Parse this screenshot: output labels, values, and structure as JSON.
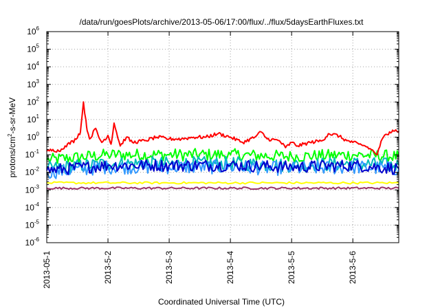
{
  "chart_data": {
    "type": "line",
    "title": "/data/run/goesPlots/archive/2013-05-06/17:00/flux/../flux/5daysEarthFluxes.txt",
    "xlabel": "Coordinated Universal Time (UTC)",
    "ylabel": {
      "pre": "protons/cm",
      "sup": "2",
      "post": "-s-sr-MeV"
    },
    "yscale": "log",
    "ylim": [
      1e-06,
      1000000.0
    ],
    "xlim": [
      0,
      5.75
    ],
    "grid": true,
    "y_ticks": [
      {
        "value": 1e-06,
        "base": "10",
        "exp": "-6"
      },
      {
        "value": 1e-05,
        "base": "10",
        "exp": "-5"
      },
      {
        "value": 0.0001,
        "base": "10",
        "exp": "-4"
      },
      {
        "value": 0.001,
        "base": "10",
        "exp": "-3"
      },
      {
        "value": 0.01,
        "base": "10",
        "exp": "-2"
      },
      {
        "value": 0.1,
        "base": "10",
        "exp": "-1"
      },
      {
        "value": 1,
        "base": "10",
        "exp": "0"
      },
      {
        "value": 10.0,
        "base": "10",
        "exp": "1"
      },
      {
        "value": 100.0,
        "base": "10",
        "exp": "2"
      },
      {
        "value": 1000.0,
        "base": "10",
        "exp": "3"
      },
      {
        "value": 10000.0,
        "base": "10",
        "exp": "4"
      },
      {
        "value": 100000.0,
        "base": "10",
        "exp": "5"
      },
      {
        "value": 1000000.0,
        "base": "10",
        "exp": "6"
      }
    ],
    "x_ticks": [
      {
        "value": 0,
        "label": "2013-05-1"
      },
      {
        "value": 1,
        "label": "2013-5-2"
      },
      {
        "value": 2,
        "label": "2013-5-3"
      },
      {
        "value": 3,
        "label": "2013-5-4"
      },
      {
        "value": 4,
        "label": "2013-5-5"
      },
      {
        "value": 5,
        "label": "2013-5-6"
      }
    ],
    "series": [
      {
        "color": "#ff0000",
        "log10_points": [
          [
            0,
            -0.8
          ],
          [
            0.1,
            -0.7
          ],
          [
            0.2,
            -0.8
          ],
          [
            0.3,
            -0.5
          ],
          [
            0.45,
            -0.2
          ],
          [
            0.55,
            0.3
          ],
          [
            0.6,
            2.0
          ],
          [
            0.65,
            0.6
          ],
          [
            0.7,
            -0.1
          ],
          [
            0.8,
            0.5
          ],
          [
            0.85,
            0.0
          ],
          [
            0.9,
            -0.3
          ],
          [
            1.0,
            0.1
          ],
          [
            1.05,
            -0.4
          ],
          [
            1.1,
            0.8
          ],
          [
            1.2,
            -0.5
          ],
          [
            1.3,
            0.0
          ],
          [
            1.4,
            -0.3
          ],
          [
            1.6,
            -0.2
          ],
          [
            1.8,
            0.0
          ],
          [
            2.0,
            -0.1
          ],
          [
            2.2,
            -0.1
          ],
          [
            2.4,
            0.0
          ],
          [
            2.6,
            0.0
          ],
          [
            2.8,
            0.2
          ],
          [
            3.0,
            0.0
          ],
          [
            3.2,
            -0.3
          ],
          [
            3.4,
            0.0
          ],
          [
            3.5,
            0.3
          ],
          [
            3.6,
            -0.1
          ],
          [
            3.8,
            -0.2
          ],
          [
            3.9,
            -0.6
          ],
          [
            4.0,
            -0.3
          ],
          [
            4.1,
            -0.5
          ],
          [
            4.3,
            -0.3
          ],
          [
            4.5,
            -0.2
          ],
          [
            4.6,
            0.2
          ],
          [
            4.75,
            0.1
          ],
          [
            4.9,
            -0.2
          ],
          [
            5.0,
            -0.3
          ],
          [
            5.1,
            -0.4
          ],
          [
            5.2,
            -0.5
          ],
          [
            5.3,
            -0.7
          ],
          [
            5.4,
            -1.0
          ],
          [
            5.45,
            -0.4
          ],
          [
            5.5,
            0.0
          ],
          [
            5.6,
            0.3
          ],
          [
            5.65,
            0.4
          ],
          [
            5.75,
            0.35
          ]
        ],
        "jitter": 0.1,
        "step": 0.02
      },
      {
        "color": "#00ff00",
        "log10_points": [
          [
            0,
            -1.3
          ],
          [
            1,
            -1.0
          ],
          [
            2,
            -1.0
          ],
          [
            3,
            -1.0
          ],
          [
            4,
            -1.1
          ],
          [
            5,
            -1.0
          ],
          [
            5.75,
            -1.1
          ]
        ],
        "jitter": 0.35,
        "step": 0.025
      },
      {
        "color": "#00bbbb",
        "log10_points": [
          [
            0,
            -1.8
          ],
          [
            1,
            -1.5
          ],
          [
            2,
            -1.5
          ],
          [
            3,
            -1.5
          ],
          [
            4,
            -1.6
          ],
          [
            5,
            -1.5
          ],
          [
            5.75,
            -1.6
          ]
        ],
        "jitter": 0.4,
        "step": 0.025
      },
      {
        "color": "#0000cc",
        "log10_points": [
          [
            0,
            -1.9
          ],
          [
            1,
            -1.6
          ],
          [
            2,
            -1.6
          ],
          [
            3,
            -1.6
          ],
          [
            4,
            -1.7
          ],
          [
            5,
            -1.6
          ],
          [
            5.75,
            -1.8
          ]
        ],
        "jitter": 0.35,
        "step": 0.025
      },
      {
        "color": "#3399ff",
        "log10_points": [
          [
            0,
            -2.0
          ],
          [
            1,
            -1.7
          ],
          [
            2,
            -1.7
          ],
          [
            3,
            -1.7
          ],
          [
            4,
            -1.8
          ],
          [
            5,
            -1.7
          ],
          [
            5.75,
            -1.8
          ]
        ],
        "jitter": 0.4,
        "step": 0.025
      },
      {
        "color": "#ffff00",
        "log10_points": [
          [
            0,
            -2.6
          ],
          [
            5.75,
            -2.6
          ]
        ],
        "jitter": 0.06,
        "step": 0.04
      },
      {
        "color": "#993366",
        "log10_points": [
          [
            0,
            -2.9
          ],
          [
            5.75,
            -2.9
          ]
        ],
        "jitter": 0.06,
        "step": 0.03
      }
    ]
  }
}
